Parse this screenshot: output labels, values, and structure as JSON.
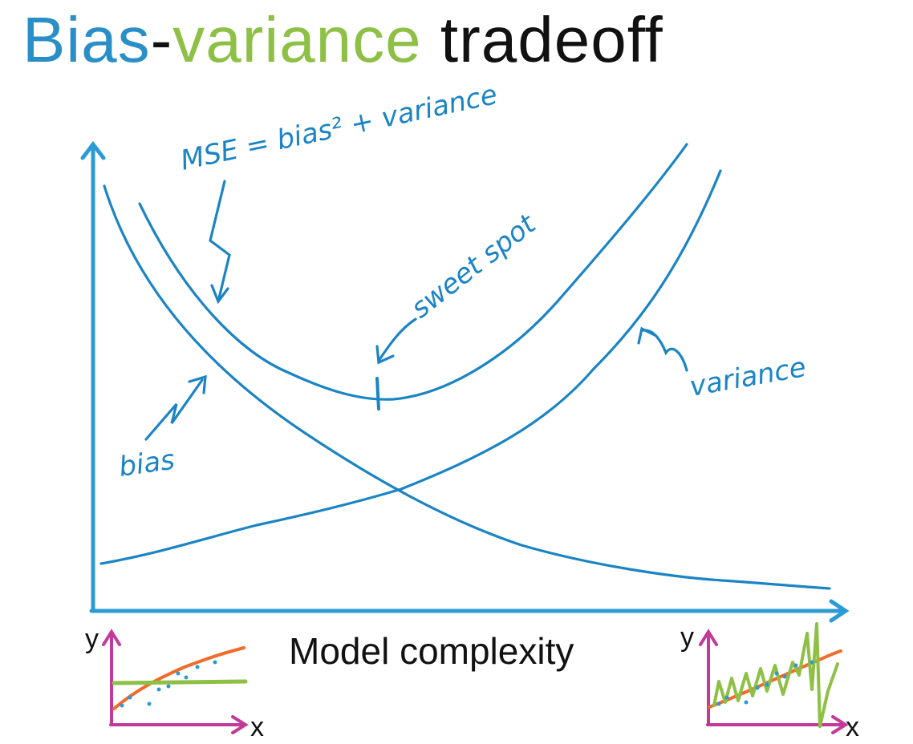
{
  "title": {
    "part1": "Bias",
    "dash": "-",
    "part2": "variance",
    "part3": " tradeoff"
  },
  "annotations": {
    "mse": "MSE = bias² + variance",
    "sweet_spot": "sweet spot",
    "bias": "bias",
    "variance": "variance"
  },
  "axes": {
    "x_label": "Model complexity"
  },
  "insets": {
    "left": {
      "y_label": "y",
      "x_label": "x"
    },
    "right": {
      "y_label": "y",
      "x_label": "x"
    }
  },
  "colors": {
    "curve": "#1a84c4",
    "axis": "#2a9bd4",
    "title_bias": "#2a8fc7",
    "title_variance": "#8dc044",
    "inset_axis": "#c2399a",
    "fit_orange": "#f26b2a",
    "fit_green": "#8dc044"
  }
}
